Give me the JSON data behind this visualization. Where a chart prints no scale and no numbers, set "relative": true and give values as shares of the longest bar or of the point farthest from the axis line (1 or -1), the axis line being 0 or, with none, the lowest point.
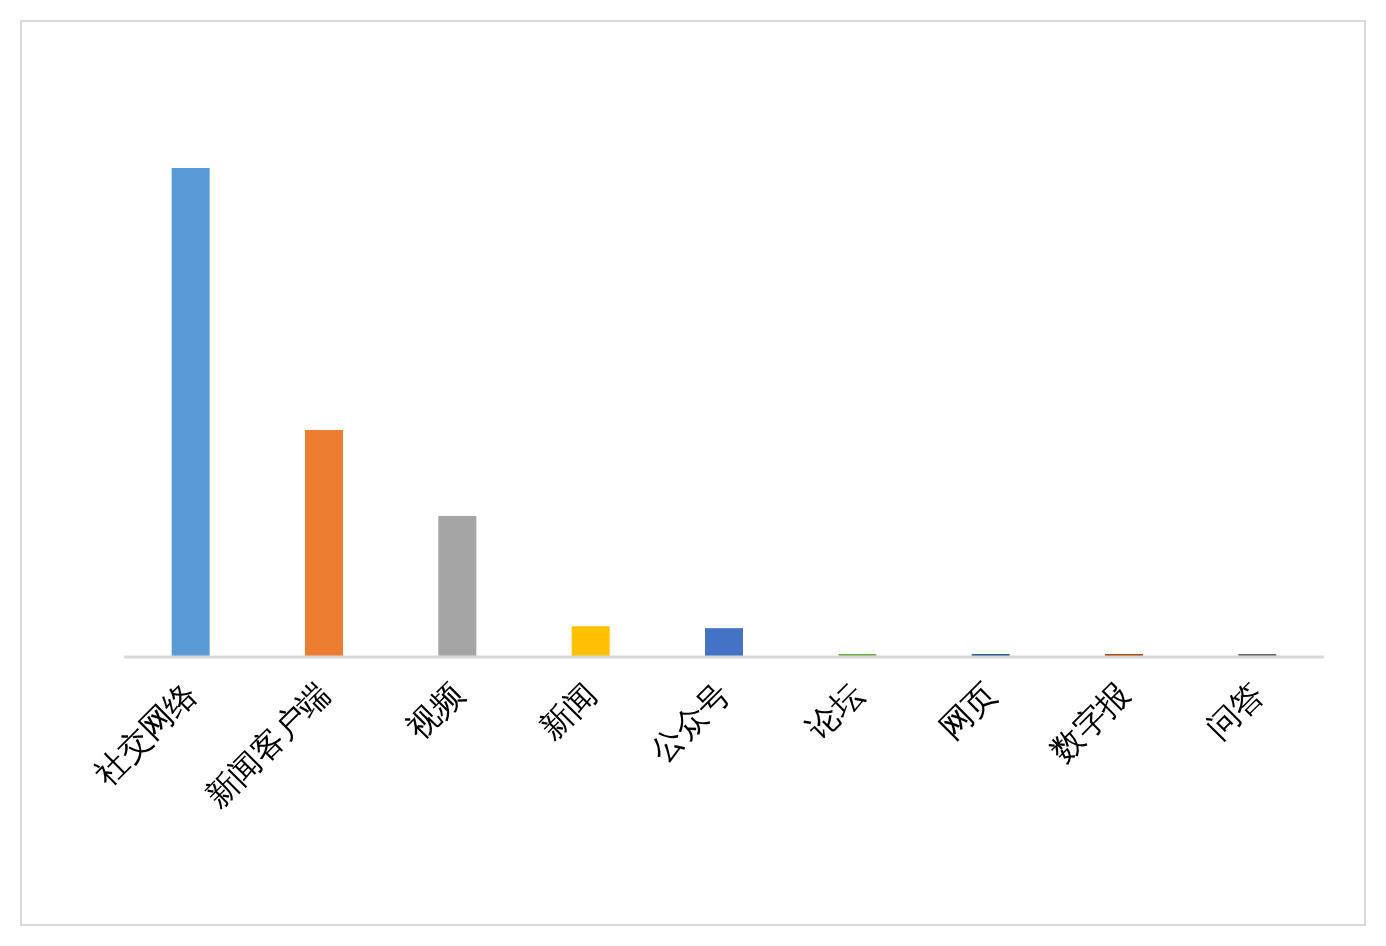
{
  "chart_data": {
    "type": "bar",
    "relative": true,
    "categories": [
      "社交网络",
      "新闻客户端",
      "视频",
      "新闻",
      "公众号",
      "论坛",
      "网页",
      "数字报",
      "问答"
    ],
    "values": [
      1,
      0.463,
      0.287,
      0.061,
      0.057,
      0.004,
      0.004,
      0.004,
      0.004
    ],
    "colors": [
      "#5b9bd5",
      "#ed7d31",
      "#a5a5a5",
      "#ffc000",
      "#4472c4",
      "#70ad47",
      "#255e91",
      "#9e480e",
      "#636363"
    ]
  }
}
